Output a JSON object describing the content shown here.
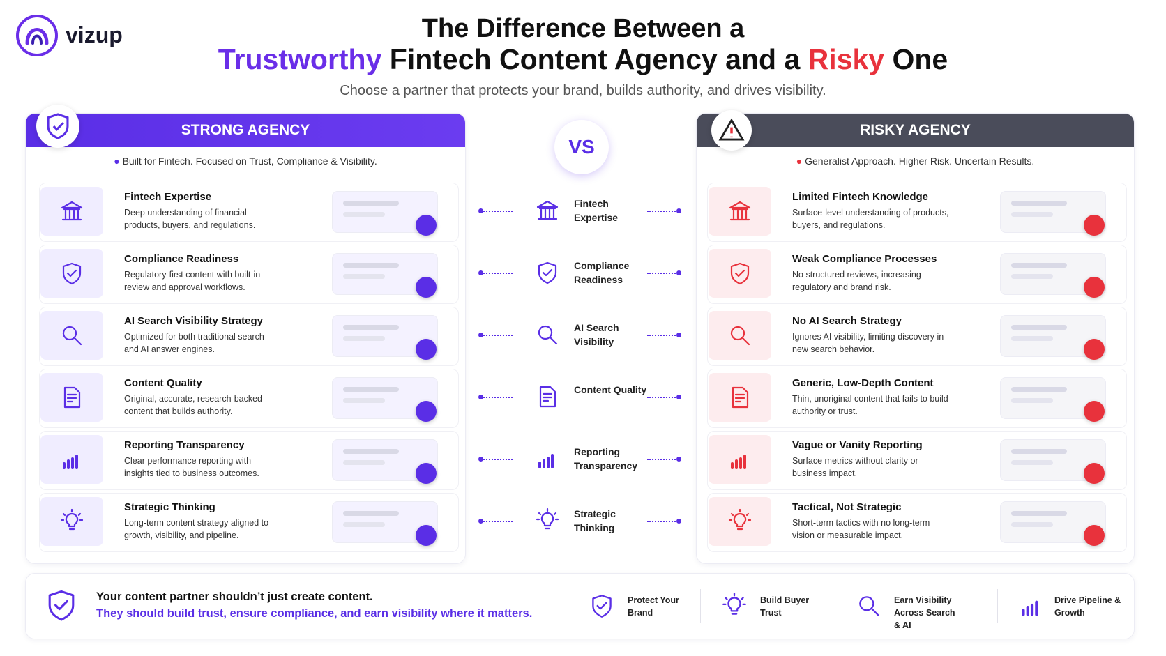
{
  "header": {
    "logo": "vizup",
    "title_line1": "The Difference Between a",
    "title_line2": [
      "Trustworthy",
      " Fintech Content Agency and a ",
      "Risky",
      " One"
    ],
    "subtitle": "Choose a partner that protects your brand, builds authority, and drives visibility."
  },
  "strong": {
    "title": "STRONG AGENCY",
    "tagline": "Built for Fintech. Focused on Trust, Compliance & Visibility.",
    "items": [
      {
        "title": "Fintech Expertise",
        "desc": "Deep understanding of financial products, buyers, and regulations."
      },
      {
        "title": "Compliance Readiness",
        "desc": "Regulatory-first content with built-in review and approval workflows."
      },
      {
        "title": "AI Search Visibility Strategy",
        "desc": "Optimized for both traditional search and AI answer engines."
      },
      {
        "title": "Content Quality",
        "desc": "Original, accurate, research-backed content that builds authority."
      },
      {
        "title": "Reporting Transparency",
        "desc": "Clear performance reporting with insights tied to business outcomes."
      },
      {
        "title": "Strategic Thinking",
        "desc": "Long-term content strategy aligned to growth, visibility, and pipeline."
      }
    ]
  },
  "versus": {
    "label": "VS",
    "items": [
      "Fintech Expertise",
      "Compliance Readiness",
      "AI Search Visibility",
      "Content Quality",
      "Reporting Transparency",
      "Strategic Thinking"
    ]
  },
  "risky": {
    "title": "RISKY AGENCY",
    "tagline": "Generalist Approach. Higher Risk. Uncertain Results.",
    "items": [
      {
        "title": "Limited Fintech Knowledge",
        "desc": "Surface-level understanding of products, buyers, and regulations."
      },
      {
        "title": "Weak Compliance Processes",
        "desc": "No structured reviews, increasing regulatory and brand risk."
      },
      {
        "title": "No AI Search Strategy",
        "desc": "Ignores AI visibility, limiting discovery in new search behavior."
      },
      {
        "title": "Generic, Low-Depth Content",
        "desc": "Thin, unoriginal content that fails to build authority or trust."
      },
      {
        "title": "Vague or Vanity Reporting",
        "desc": "Surface metrics without clarity or business impact."
      },
      {
        "title": "Tactical, Not Strategic",
        "desc": "Short-term tactics with no long-term vision or measurable impact."
      }
    ]
  },
  "footer": {
    "line1": "Your content partner shouldn’t just create content.",
    "line2": "They should build trust, ensure compliance, and earn visibility where it matters.",
    "features": [
      "Protect Your Brand",
      "Build Buyer Trust",
      "Earn Visibility Across Search & AI",
      "Drive Pipeline & Growth"
    ]
  }
}
